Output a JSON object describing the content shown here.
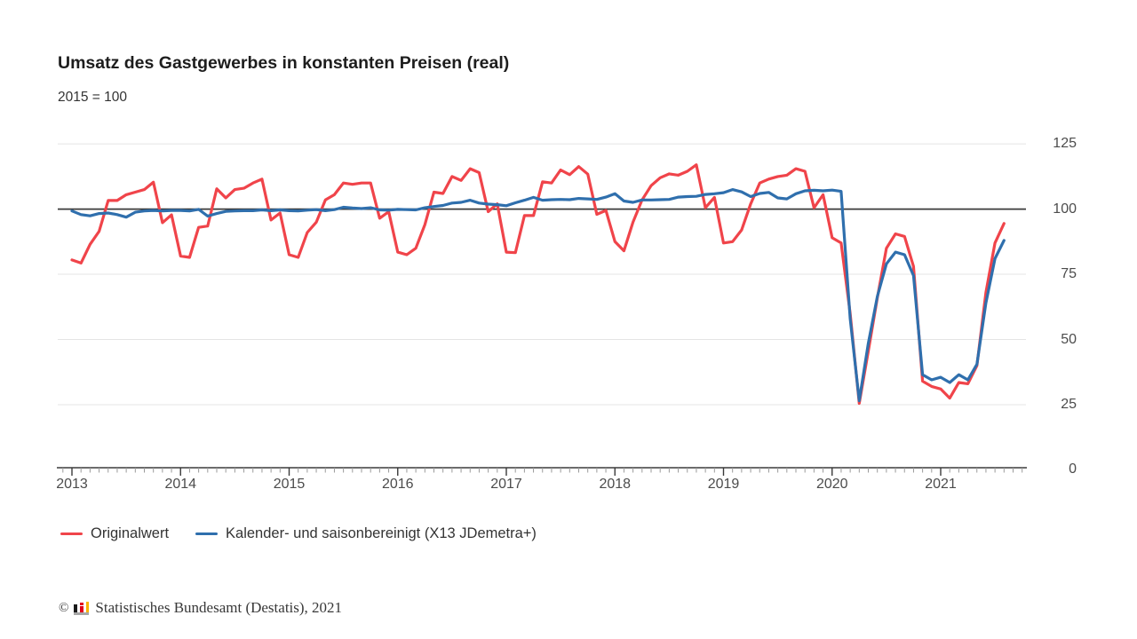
{
  "chart_data": {
    "type": "line",
    "title": "Umsatz des Gastgewerbes in konstanten Preisen (real)",
    "subtitle": "2015 = 100",
    "frequency": "monthly",
    "x_start": "2013-01",
    "x_end": "2021-08",
    "x_year_labels": [
      "2013",
      "2014",
      "2015",
      "2016",
      "2017",
      "2018",
      "2019",
      "2020",
      "2021"
    ],
    "y_ticks": [
      0,
      25,
      50,
      75,
      100,
      125
    ],
    "ylim": [
      0,
      125
    ],
    "reference_line": 100,
    "grid": "horizontal-light",
    "legend_position": "bottom-left",
    "axis_color": "#3a3a3a",
    "grid_color": "#e4e4e4",
    "series": [
      {
        "name": "Originalwert",
        "color": "#f0444a",
        "values": [
          80.5,
          79.3,
          86.5,
          91.5,
          103.3,
          103.3,
          105.5,
          106.5,
          107.5,
          110.3,
          94.8,
          97.8,
          82.0,
          81.5,
          93.0,
          93.5,
          107.8,
          104.3,
          107.5,
          108.0,
          110.0,
          111.5,
          95.8,
          98.5,
          82.5,
          81.5,
          91.0,
          95.0,
          103.5,
          105.5,
          110.0,
          109.5,
          110.0,
          110.0,
          96.5,
          99.0,
          83.5,
          82.5,
          85.0,
          94.0,
          106.5,
          106.0,
          112.5,
          111.0,
          115.5,
          114.0,
          99.0,
          102.0,
          83.5,
          83.3,
          97.5,
          97.5,
          110.5,
          110.0,
          115.0,
          113.2,
          116.3,
          113.4,
          98.0,
          99.5,
          87.5,
          84.0,
          95.0,
          103.5,
          109.0,
          112.0,
          113.5,
          113.0,
          114.5,
          117.0,
          100.5,
          104.5,
          87.0,
          87.5,
          92.0,
          102.0,
          110.0,
          111.5,
          112.5,
          113.0,
          115.5,
          114.5,
          100.5,
          105.5,
          89.0,
          87.0,
          60.0,
          25.5,
          45.5,
          66.0,
          85.0,
          90.5,
          89.5,
          78.0,
          34.0,
          32.0,
          31.0,
          27.5,
          33.5,
          33.0,
          40.0,
          68.0,
          87.0,
          94.5
        ]
      },
      {
        "name": "Kalender- und saisonbereinigt (X13 JDemetra+)",
        "color": "#2f6fad",
        "values": [
          99.3,
          97.9,
          97.4,
          98.3,
          98.5,
          97.9,
          96.9,
          98.8,
          99.3,
          99.5,
          99.3,
          99.5,
          99.5,
          99.3,
          99.9,
          97.3,
          98.3,
          99.1,
          99.3,
          99.4,
          99.4,
          99.7,
          99.4,
          99.7,
          99.4,
          99.3,
          99.6,
          99.8,
          99.4,
          99.8,
          100.7,
          100.4,
          100.2,
          100.5,
          99.7,
          99.6,
          99.9,
          99.8,
          99.7,
          100.5,
          101.0,
          101.4,
          102.3,
          102.6,
          103.4,
          102.3,
          101.9,
          101.7,
          101.3,
          102.4,
          103.4,
          104.5,
          103.4,
          103.6,
          103.7,
          103.6,
          104.1,
          103.9,
          103.7,
          104.6,
          105.9,
          103.1,
          102.6,
          103.5,
          103.5,
          103.6,
          103.7,
          104.6,
          104.8,
          104.9,
          105.6,
          105.9,
          106.3,
          107.5,
          106.6,
          104.8,
          106.0,
          106.4,
          104.3,
          103.9,
          105.9,
          107.0,
          107.2,
          107.0,
          107.3,
          106.8,
          58.0,
          26.5,
          48.5,
          66.5,
          79.0,
          83.5,
          82.5,
          74.5,
          36.5,
          34.5,
          35.5,
          33.5,
          36.5,
          34.5,
          40.5,
          64.0,
          81.0,
          88.0
        ]
      }
    ]
  },
  "footer": {
    "copyright": "©",
    "source": "Statistisches Bundesamt (Destatis), 2021"
  },
  "logo_colors": {
    "bar_black": "#1a1a1a",
    "bar_red": "#e2001a",
    "dot_red": "#e2001a",
    "bar_gold": "#f9b301",
    "baseline_gray": "#a6a6a6"
  }
}
